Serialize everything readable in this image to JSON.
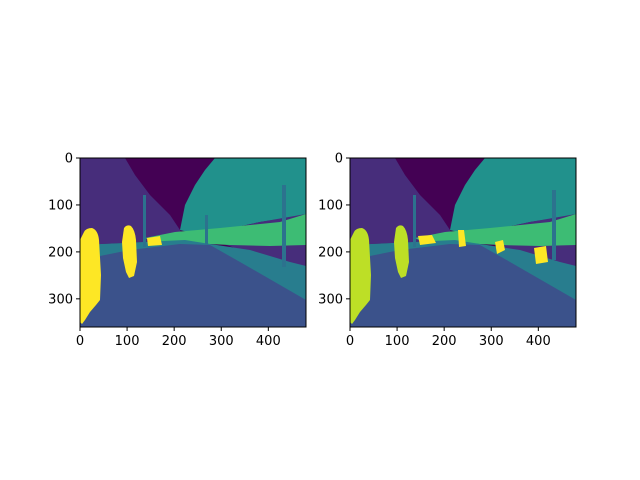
{
  "chart_data": [
    {
      "type": "heatmap",
      "title": "",
      "xlabel": "",
      "ylabel": "",
      "xlim": [
        0,
        480
      ],
      "ylim": [
        360,
        0
      ],
      "x_ticks": [
        "0",
        "100",
        "200",
        "300",
        "400"
      ],
      "y_ticks": [
        "0",
        "100",
        "200",
        "300"
      ],
      "colormap": "viridis",
      "content": "segmentation label map"
    },
    {
      "type": "heatmap",
      "title": "",
      "xlabel": "",
      "ylabel": "",
      "xlim": [
        0,
        480
      ],
      "ylim": [
        360,
        0
      ],
      "x_ticks": [
        "0",
        "100",
        "200",
        "300",
        "400"
      ],
      "y_ticks": [
        "0",
        "100",
        "200",
        "300"
      ],
      "colormap": "viridis",
      "content": "segmentation label map"
    }
  ],
  "colors": {
    "sky": "#440154",
    "building": "#472d7b",
    "vegetation": "#21918c",
    "sidewalk": "#287d8e",
    "road": "#3b528b",
    "fence": "#3dbc74",
    "pole": "#2c728e",
    "person_left": "#fde725",
    "person_right": "#bddf26"
  }
}
